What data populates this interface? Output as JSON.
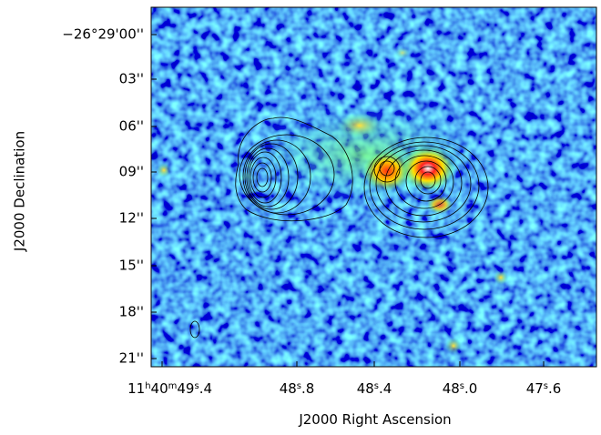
{
  "figure": {
    "x_label": "J2000 Right Ascension",
    "y_label": "J2000 Declination",
    "y_ticks": [
      "−26°29'00''",
      "03''",
      "06''",
      "09''",
      "12''",
      "15''",
      "18''",
      "21''"
    ],
    "x_ticks": [
      [
        {
          "text": "11",
          "sup": false
        },
        {
          "text": "h",
          "sup": true
        },
        {
          "text": "40",
          "sup": false
        },
        {
          "text": "m",
          "sup": true
        },
        {
          "text": "49",
          "sup": false
        },
        {
          "text": "s",
          "sup": true
        },
        {
          "text": ".4",
          "sup": false
        }
      ],
      [
        {
          "text": "48",
          "sup": false
        },
        {
          "text": "s",
          "sup": true
        },
        {
          "text": ".8",
          "sup": false
        }
      ],
      [
        {
          "text": "48",
          "sup": false
        },
        {
          "text": "s",
          "sup": true
        },
        {
          "text": ".4",
          "sup": false
        }
      ],
      [
        {
          "text": "48",
          "sup": false
        },
        {
          "text": "s",
          "sup": true
        },
        {
          "text": ".0",
          "sup": false
        }
      ],
      [
        {
          "text": "47",
          "sup": false
        },
        {
          "text": "s",
          "sup": true
        },
        {
          "text": ".6",
          "sup": false
        }
      ]
    ]
  }
}
